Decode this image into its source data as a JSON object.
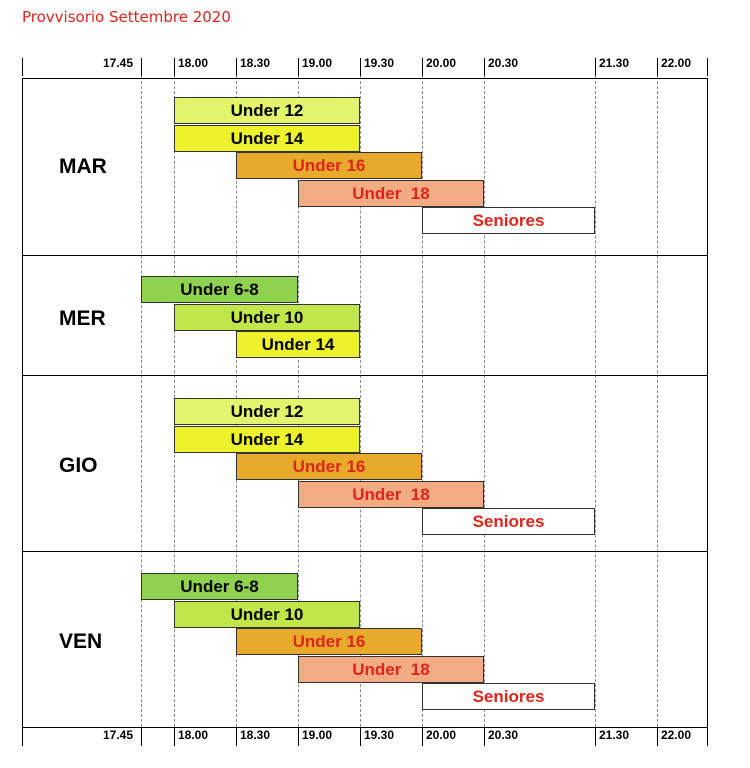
{
  "title": "Provvisorio Settembre 2020",
  "times": [
    "17.45",
    "18.00",
    "18.30",
    "19.00",
    "19.30",
    "20.00",
    "20.30",
    "21.30",
    "22.00"
  ],
  "colors": {
    "u12": "#e3f56d",
    "u14": "#eef22c",
    "u16": "#e8aa2a",
    "u18": "#f3ab84",
    "seniores": "#ffffff",
    "u68": "#8ed24f",
    "u10": "#c1e64a",
    "red_text": "#e0241c"
  },
  "days": [
    {
      "label": "MAR",
      "bars": [
        {
          "label": "Under 12",
          "start": "18.00",
          "end": "19.30",
          "color": "u12",
          "text_color": "#000000"
        },
        {
          "label": "Under 14",
          "start": "18.00",
          "end": "19.30",
          "color": "u14",
          "text_color": "#000000"
        },
        {
          "label": "Under 16",
          "start": "18.30",
          "end": "20.00",
          "color": "u16",
          "text_color": "#e0241c"
        },
        {
          "label": "Under  18",
          "start": "19.00",
          "end": "20.30",
          "color": "u18",
          "text_color": "#e0241c"
        },
        {
          "label": "Seniores",
          "start": "20.00",
          "end": "21.30",
          "color": "seniores",
          "text_color": "#e0241c"
        }
      ]
    },
    {
      "label": "MER",
      "bars": [
        {
          "label": "Under 6-8",
          "start": "17.45",
          "end": "19.00",
          "color": "u68",
          "text_color": "#000000"
        },
        {
          "label": "Under 10",
          "start": "18.00",
          "end": "19.30",
          "color": "u10",
          "text_color": "#000000"
        },
        {
          "label": "Under 14",
          "start": "18.30",
          "end": "19.30",
          "color": "u14",
          "text_color": "#000000"
        }
      ]
    },
    {
      "label": "GIO",
      "bars": [
        {
          "label": "Under 12",
          "start": "18.00",
          "end": "19.30",
          "color": "u12",
          "text_color": "#000000"
        },
        {
          "label": "Under 14",
          "start": "18.00",
          "end": "19.30",
          "color": "u14",
          "text_color": "#000000"
        },
        {
          "label": "Under 16",
          "start": "18.30",
          "end": "20.00",
          "color": "u16",
          "text_color": "#e0241c"
        },
        {
          "label": "Under  18",
          "start": "19.00",
          "end": "20.30",
          "color": "u18",
          "text_color": "#e0241c"
        },
        {
          "label": "Seniores",
          "start": "20.00",
          "end": "21.30",
          "color": "seniores",
          "text_color": "#e0241c"
        }
      ]
    },
    {
      "label": "VEN",
      "bars": [
        {
          "label": "Under 6-8",
          "start": "17.45",
          "end": "19.00",
          "color": "u68",
          "text_color": "#000000"
        },
        {
          "label": "Under 10",
          "start": "18.00",
          "end": "19.30",
          "color": "u10",
          "text_color": "#000000"
        },
        {
          "label": "Under 16",
          "start": "18.30",
          "end": "20.00",
          "color": "u16",
          "text_color": "#e0241c"
        },
        {
          "label": "Under  18",
          "start": "19.00",
          "end": "20.30",
          "color": "u18",
          "text_color": "#e0241c"
        },
        {
          "label": "Seniores",
          "start": "20.00",
          "end": "21.30",
          "color": "seniores",
          "text_color": "#e0241c"
        }
      ]
    }
  ]
}
